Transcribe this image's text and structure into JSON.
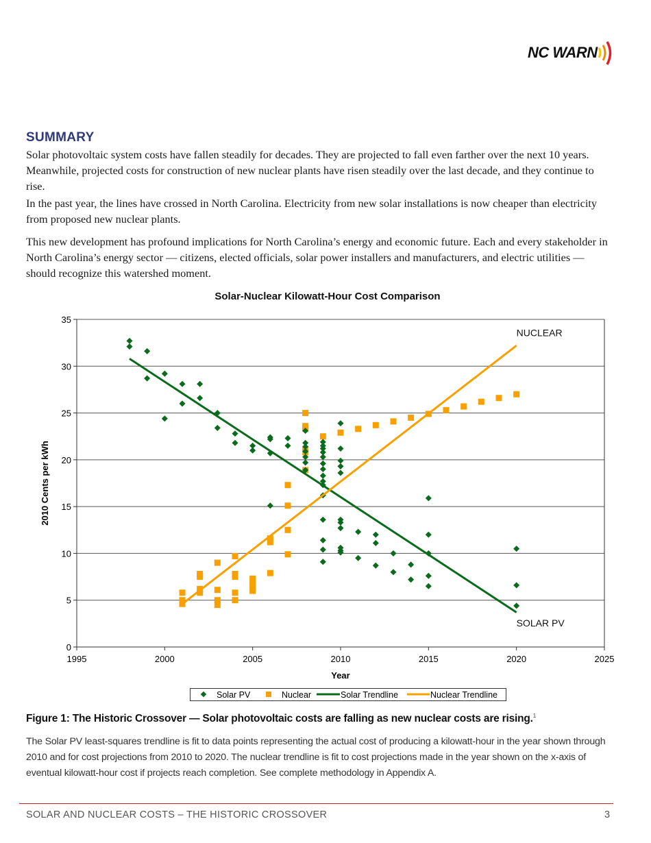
{
  "header": {
    "logo_text": "NC WARN"
  },
  "summary": {
    "title": "SUMMARY",
    "paragraphs": [
      "Solar photovoltaic system costs have fallen steadily for decades. They are projected to fall even farther over the next 10 years. Meanwhile, projected costs for construction of new nuclear plants have risen steadily over the last decade, and they continue to rise.",
      "In the past year, the lines have crossed in North Carolina. Electricity from new solar installations is now cheaper than electricity from proposed new nuclear plants.",
      "This new development has profound implications for North Carolina’s energy and economic future. Each and every stakeholder in North Carolina’s energy sector — citizens, elected officials, solar power installers and manufacturers, and electric utilities — should recognize this watershed moment."
    ]
  },
  "chart_data": {
    "type": "scatter",
    "title": "Solar-Nuclear Kilowatt-Hour Cost Comparison",
    "xlabel": "Year",
    "ylabel": "2010 Cents per kWh",
    "xlim": [
      1995,
      2025
    ],
    "ylim": [
      0,
      35
    ],
    "xticks": [
      "1995",
      "2000",
      "2005",
      "2010",
      "2015",
      "2020",
      "2025"
    ],
    "yticks": [
      "0",
      "5",
      "10",
      "15",
      "20",
      "25",
      "30",
      "35"
    ],
    "grid": "horizontal",
    "legend_position": "bottom",
    "colors": {
      "solar": "#0b6b1c",
      "nuclear": "#f7a000"
    },
    "annotations": [
      {
        "text": "NUCLEAR",
        "x": 2020,
        "y": 33.2
      },
      {
        "text": "SOLAR PV",
        "x": 2020,
        "y": 2.2
      }
    ],
    "series": [
      {
        "name": "Solar PV",
        "marker": "diamond",
        "points": [
          [
            1998,
            32.7
          ],
          [
            1998,
            32.1
          ],
          [
            1999,
            31.6
          ],
          [
            1999,
            28.7
          ],
          [
            2000,
            29.2
          ],
          [
            2000,
            24.4
          ],
          [
            2001,
            28.1
          ],
          [
            2001,
            26.0
          ],
          [
            2002,
            28.1
          ],
          [
            2002,
            26.6
          ],
          [
            2003,
            25.0
          ],
          [
            2003,
            23.4
          ],
          [
            2004,
            22.8
          ],
          [
            2004,
            21.8
          ],
          [
            2005,
            21.5
          ],
          [
            2005,
            21.0
          ],
          [
            2006,
            22.4
          ],
          [
            2006,
            22.2
          ],
          [
            2006,
            20.7
          ],
          [
            2006,
            15.1
          ],
          [
            2007,
            22.3
          ],
          [
            2007,
            21.5
          ],
          [
            2008,
            23.1
          ],
          [
            2008,
            21.8
          ],
          [
            2008,
            21.4
          ],
          [
            2008,
            20.9
          ],
          [
            2008,
            20.3
          ],
          [
            2008,
            19.7
          ],
          [
            2008,
            18.9
          ],
          [
            2009,
            21.9
          ],
          [
            2009,
            21.5
          ],
          [
            2009,
            21.2
          ],
          [
            2009,
            20.8
          ],
          [
            2009,
            20.3
          ],
          [
            2009,
            19.6
          ],
          [
            2009,
            19.0
          ],
          [
            2009,
            18.3
          ],
          [
            2009,
            17.7
          ],
          [
            2009,
            17.3
          ],
          [
            2009,
            16.2
          ],
          [
            2009,
            13.6
          ],
          [
            2009,
            11.4
          ],
          [
            2009,
            10.4
          ],
          [
            2009,
            9.1
          ],
          [
            2010,
            23.9
          ],
          [
            2010,
            21.2
          ],
          [
            2010,
            19.9
          ],
          [
            2010,
            19.3
          ],
          [
            2010,
            18.6
          ],
          [
            2010,
            13.6
          ],
          [
            2010,
            13.3
          ],
          [
            2010,
            12.7
          ],
          [
            2010,
            10.6
          ],
          [
            2010,
            10.3
          ],
          [
            2010,
            10.1
          ],
          [
            2011,
            12.3
          ],
          [
            2011,
            9.5
          ],
          [
            2012,
            12.0
          ],
          [
            2012,
            11.1
          ],
          [
            2012,
            8.7
          ],
          [
            2013,
            10.0
          ],
          [
            2013,
            8.0
          ],
          [
            2014,
            8.8
          ],
          [
            2014,
            7.2
          ],
          [
            2015,
            15.9
          ],
          [
            2015,
            12.0
          ],
          [
            2015,
            10.0
          ],
          [
            2015,
            7.6
          ],
          [
            2015,
            6.5
          ],
          [
            2020,
            10.5
          ],
          [
            2020,
            6.6
          ],
          [
            2020,
            4.4
          ]
        ]
      },
      {
        "name": "Nuclear",
        "marker": "square",
        "points": [
          [
            2001,
            5.8
          ],
          [
            2001,
            5.0
          ],
          [
            2001,
            4.6
          ],
          [
            2002,
            7.8
          ],
          [
            2002,
            7.5
          ],
          [
            2002,
            6.2
          ],
          [
            2002,
            5.8
          ],
          [
            2003,
            9.0
          ],
          [
            2003,
            6.1
          ],
          [
            2003,
            5.0
          ],
          [
            2003,
            4.5
          ],
          [
            2004,
            9.7
          ],
          [
            2004,
            7.8
          ],
          [
            2004,
            7.5
          ],
          [
            2004,
            5.8
          ],
          [
            2004,
            5.0
          ],
          [
            2005,
            7.3
          ],
          [
            2005,
            6.8
          ],
          [
            2005,
            6.3
          ],
          [
            2005,
            6.0
          ],
          [
            2006,
            11.6
          ],
          [
            2006,
            11.2
          ],
          [
            2006,
            7.9
          ],
          [
            2007,
            17.3
          ],
          [
            2007,
            15.1
          ],
          [
            2007,
            12.5
          ],
          [
            2007,
            9.9
          ],
          [
            2008,
            25.0
          ],
          [
            2008,
            23.6
          ],
          [
            2008,
            23.3
          ],
          [
            2008,
            21.1
          ],
          [
            2008,
            20.8
          ],
          [
            2008,
            18.9
          ],
          [
            2009,
            22.5
          ],
          [
            2010,
            22.9
          ],
          [
            2011,
            23.3
          ],
          [
            2012,
            23.7
          ],
          [
            2013,
            24.1
          ],
          [
            2014,
            24.5
          ],
          [
            2015,
            24.9
          ],
          [
            2016,
            25.3
          ],
          [
            2017,
            25.7
          ],
          [
            2018,
            26.2
          ],
          [
            2019,
            26.6
          ],
          [
            2020,
            27.0
          ]
        ]
      },
      {
        "name": "Solar Trendline",
        "type": "line",
        "points": [
          [
            1998,
            30.8
          ],
          [
            2020,
            3.7
          ]
        ]
      },
      {
        "name": "Nuclear Trendline",
        "type": "line",
        "points": [
          [
            2001,
            4.6
          ],
          [
            2020,
            32.2
          ]
        ]
      }
    ]
  },
  "figure": {
    "caption": "Figure 1: The Historic Crossover — Solar photovoltaic costs are falling as new nuclear costs are rising.",
    "footnote_mark": "1",
    "note": "The Solar PV least-squares trendline is fit to data points representing the actual cost of producing a kilowatt-hour in the year shown through 2010 and for cost projections from 2010 to 2020. The nuclear trendline is fit to cost projections made in the year shown on the x-axis of eventual kilowatt-hour cost if projects reach completion. See complete methodology in Appendix A."
  },
  "footer": {
    "title": "SOLAR AND NUCLEAR COSTS – THE HISTORIC CROSSOVER",
    "page": "3"
  }
}
